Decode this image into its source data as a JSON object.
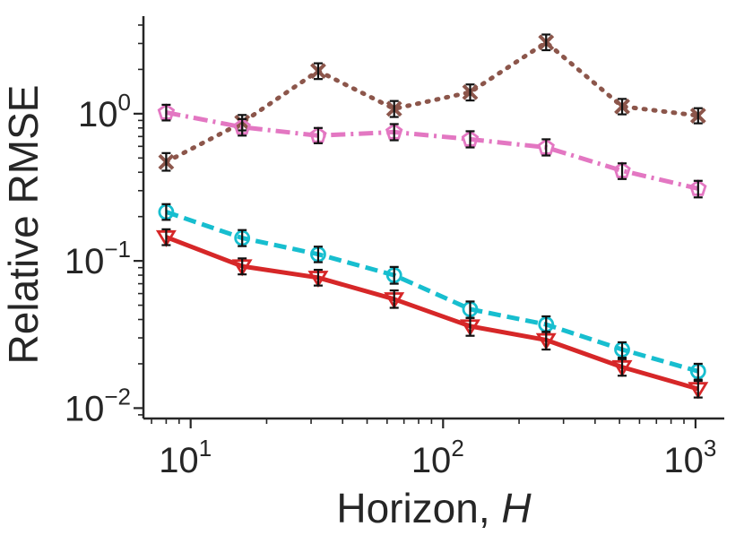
{
  "chart_data": {
    "type": "line",
    "title": "",
    "xlabel": "Horizon, ",
    "xlabel_var": "H",
    "ylabel": "Relative RMSE",
    "xscale": "log",
    "yscale": "log",
    "xlim": [
      6.5,
      1300
    ],
    "ylim": [
      0.0085,
      4.6
    ],
    "grid": false,
    "legend": "none",
    "xticks": [
      {
        "base": "10",
        "exp": "1",
        "value": 10
      },
      {
        "base": "10",
        "exp": "2",
        "value": 100
      },
      {
        "base": "10",
        "exp": "3",
        "value": 1000
      }
    ],
    "yticks": [
      {
        "base": "10",
        "exp": "−2",
        "value": 0.01
      },
      {
        "base": "10",
        "exp": "−1",
        "value": 0.1
      },
      {
        "base": "10",
        "exp": "0",
        "value": 1
      }
    ],
    "x": [
      8,
      16,
      32,
      64,
      128,
      256,
      512,
      1024
    ],
    "series": [
      {
        "name": "brown-x-dotted",
        "color": "#8c564b",
        "linestyle": "dotted",
        "marker": "x",
        "values": [
          0.47,
          0.87,
          1.95,
          1.08,
          1.4,
          3.05,
          1.12,
          0.97
        ],
        "err_low": [
          0.41,
          0.77,
          1.72,
          0.95,
          1.23,
          2.7,
          0.99,
          0.86
        ],
        "err_high": [
          0.54,
          0.98,
          2.2,
          1.22,
          1.58,
          3.45,
          1.26,
          1.09
        ]
      },
      {
        "name": "pink-pentagon-dashdot",
        "color": "#e377c2",
        "linestyle": "dashdot",
        "marker": "pentagon",
        "values": [
          1.02,
          0.81,
          0.71,
          0.75,
          0.67,
          0.59,
          0.41,
          0.31
        ],
        "err_low": [
          0.9,
          0.71,
          0.63,
          0.66,
          0.59,
          0.52,
          0.36,
          0.27
        ],
        "err_high": [
          1.15,
          0.92,
          0.8,
          0.85,
          0.76,
          0.67,
          0.46,
          0.35
        ]
      },
      {
        "name": "cyan-circle-dashed",
        "color": "#17becf",
        "linestyle": "dashed",
        "marker": "circle",
        "values": [
          0.215,
          0.143,
          0.111,
          0.08,
          0.047,
          0.037,
          0.025,
          0.0178
        ],
        "err_low": [
          0.19,
          0.126,
          0.098,
          0.07,
          0.041,
          0.032,
          0.022,
          0.0156
        ],
        "err_high": [
          0.243,
          0.162,
          0.125,
          0.091,
          0.053,
          0.042,
          0.028,
          0.02
        ]
      },
      {
        "name": "red-triangle-solid",
        "color": "#d62728",
        "linestyle": "solid",
        "marker": "triangle-down",
        "values": [
          0.145,
          0.092,
          0.077,
          0.055,
          0.036,
          0.029,
          0.019,
          0.0135
        ],
        "err_low": [
          0.128,
          0.081,
          0.068,
          0.048,
          0.031,
          0.025,
          0.0166,
          0.0118
        ],
        "err_high": [
          0.164,
          0.104,
          0.087,
          0.063,
          0.041,
          0.033,
          0.0215,
          0.0153
        ]
      }
    ]
  }
}
